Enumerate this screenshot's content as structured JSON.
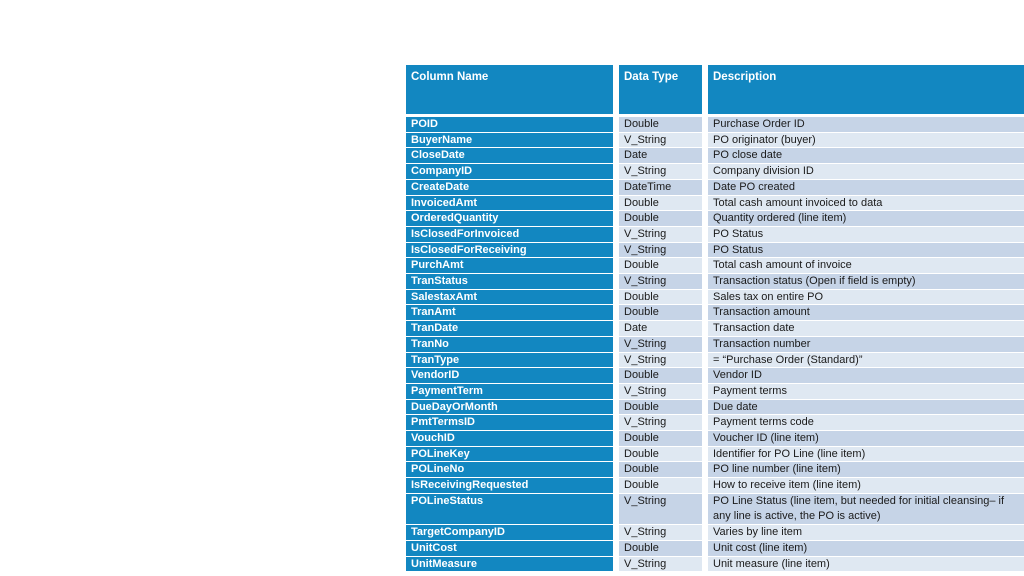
{
  "colors": {
    "accent": "#1287C1",
    "band_dark": "#C6D4E7",
    "band_light": "#DFE8F2",
    "header_text": "#FFFFFF",
    "body_text": "#1A1A1A",
    "page_background": "#FFFFFF"
  },
  "table": {
    "headers": [
      "Column Name",
      "Data Type",
      "Description"
    ],
    "rows": [
      {
        "name": "POID",
        "type": "Double",
        "desc": "Purchase Order ID"
      },
      {
        "name": "BuyerName",
        "type": "V_String",
        "desc": "PO originator (buyer)"
      },
      {
        "name": "CloseDate",
        "type": "Date",
        "desc": "PO close date"
      },
      {
        "name": "CompanyID",
        "type": "V_String",
        "desc": "Company division ID"
      },
      {
        "name": "CreateDate",
        "type": "DateTime",
        "desc": "Date PO created"
      },
      {
        "name": "InvoicedAmt",
        "type": "Double",
        "desc": "Total cash amount invoiced to data"
      },
      {
        "name": "OrderedQuantity",
        "type": "Double",
        "desc": "Quantity ordered (line item)"
      },
      {
        "name": "IsClosedForInvoiced",
        "type": "V_String",
        "desc": "PO Status"
      },
      {
        "name": "IsClosedForReceiving",
        "type": "V_String",
        "desc": "PO Status"
      },
      {
        "name": "PurchAmt",
        "type": "Double",
        "desc": "Total cash amount of invoice"
      },
      {
        "name": "TranStatus",
        "type": "V_String",
        "desc": "Transaction status (Open if field is empty)"
      },
      {
        "name": "SalestaxAmt",
        "type": "Double",
        "desc": "Sales tax on entire PO"
      },
      {
        "name": "TranAmt",
        "type": "Double",
        "desc": "Transaction amount"
      },
      {
        "name": "TranDate",
        "type": "Date",
        "desc": "Transaction date"
      },
      {
        "name": "TranNo",
        "type": "V_String",
        "desc": "Transaction number"
      },
      {
        "name": "TranType",
        "type": "V_String",
        "desc": "= “Purchase Order (Standard)”"
      },
      {
        "name": "VendorID",
        "type": "Double",
        "desc": "Vendor ID"
      },
      {
        "name": "PaymentTerm",
        "type": "V_String",
        "desc": "Payment terms"
      },
      {
        "name": "DueDayOrMonth",
        "type": "Double",
        "desc": "Due date"
      },
      {
        "name": "PmtTermsID",
        "type": "V_String",
        "desc": "Payment terms code"
      },
      {
        "name": "VouchID",
        "type": "Double",
        "desc": "Voucher ID (line item)"
      },
      {
        "name": "POLineKey",
        "type": "Double",
        "desc": "Identifier for PO Line (line item)"
      },
      {
        "name": "POLineNo",
        "type": "Double",
        "desc": "PO line number (line item)"
      },
      {
        "name": "IsReceivingRequested",
        "type": "Double",
        "desc": "How to receive item (line item)"
      },
      {
        "name": "POLineStatus",
        "type": "V_String",
        "desc": "PO Line Status (line item, but needed for initial cleansing– if any line is active, the PO is active)",
        "multiline": true
      },
      {
        "name": "TargetCompanyID",
        "type": "V_String",
        "desc": "Varies by line item"
      },
      {
        "name": "UnitCost",
        "type": "Double",
        "desc": "Unit cost (line item)"
      },
      {
        "name": "UnitMeasure",
        "type": "V_String",
        "desc": "Unit measure (line item)"
      }
    ]
  }
}
